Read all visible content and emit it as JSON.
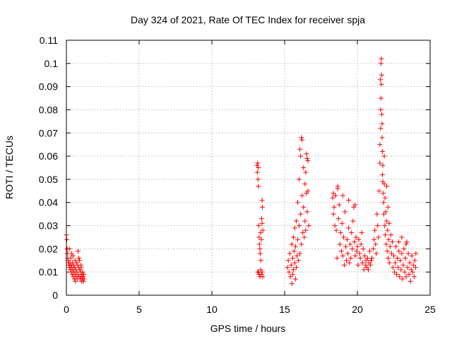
{
  "chart_data": {
    "type": "scatter",
    "title": "Day 324 of 2021, Rate Of TEC Index for receiver spja",
    "xlabel": "GPS time / hours",
    "ylabel": "ROTI / TECUs",
    "xlim": [
      0,
      25
    ],
    "ylim": [
      0,
      0.11
    ],
    "grid": true,
    "marker": "plus",
    "color": "#ff0000",
    "x_ticks": [
      "0",
      "5",
      "10",
      "15",
      "20",
      "25"
    ],
    "y_ticks": [
      "0",
      "0.01",
      "0.02",
      "0.03",
      "0.04",
      "0.05",
      "0.06",
      "0.07",
      "0.08",
      "0.09",
      "0.1",
      "0.11"
    ],
    "series": [
      {
        "points": [
          [
            0.0,
            0.026
          ],
          [
            0.03,
            0.024
          ],
          [
            0.05,
            0.02
          ],
          [
            0.08,
            0.018
          ],
          [
            0.1,
            0.016
          ],
          [
            0.12,
            0.015
          ],
          [
            0.15,
            0.014
          ],
          [
            0.17,
            0.013
          ],
          [
            0.2,
            0.02
          ],
          [
            0.22,
            0.012
          ],
          [
            0.25,
            0.014
          ],
          [
            0.27,
            0.011
          ],
          [
            0.3,
            0.016
          ],
          [
            0.32,
            0.013
          ],
          [
            0.35,
            0.01
          ],
          [
            0.37,
            0.012
          ],
          [
            0.4,
            0.009
          ],
          [
            0.42,
            0.014
          ],
          [
            0.45,
            0.011
          ],
          [
            0.47,
            0.008
          ],
          [
            0.5,
            0.013
          ],
          [
            0.52,
            0.01
          ],
          [
            0.55,
            0.007
          ],
          [
            0.57,
            0.012
          ],
          [
            0.6,
            0.009
          ],
          [
            0.62,
            0.006
          ],
          [
            0.65,
            0.011
          ],
          [
            0.67,
            0.008
          ],
          [
            0.7,
            0.014
          ],
          [
            0.72,
            0.01
          ],
          [
            0.75,
            0.007
          ],
          [
            0.77,
            0.013
          ],
          [
            0.8,
            0.019
          ],
          [
            0.82,
            0.009
          ],
          [
            0.85,
            0.012
          ],
          [
            0.87,
            0.008
          ],
          [
            0.9,
            0.015
          ],
          [
            0.92,
            0.011
          ],
          [
            0.95,
            0.007
          ],
          [
            0.97,
            0.01
          ],
          [
            1.0,
            0.008
          ],
          [
            1.02,
            0.012
          ],
          [
            1.05,
            0.006
          ],
          [
            1.07,
            0.009
          ],
          [
            1.1,
            0.007
          ],
          [
            1.12,
            0.01
          ],
          [
            1.15,
            0.008
          ],
          [
            1.17,
            0.006
          ],
          [
            1.2,
            0.009
          ],
          [
            1.22,
            0.007
          ],
          [
            0.45,
            0.017
          ],
          [
            0.6,
            0.015
          ],
          [
            0.85,
            0.016
          ],
          [
            1.0,
            0.013
          ],
          [
            0.35,
            0.018
          ],
          [
            13.1,
            0.056
          ],
          [
            13.12,
            0.053
          ],
          [
            13.15,
            0.057
          ],
          [
            13.17,
            0.05
          ],
          [
            13.2,
            0.047
          ],
          [
            13.2,
            0.055
          ],
          [
            13.22,
            0.03
          ],
          [
            13.25,
            0.025
          ],
          [
            13.27,
            0.022
          ],
          [
            13.3,
            0.02
          ],
          [
            13.32,
            0.018
          ],
          [
            13.35,
            0.027
          ],
          [
            13.37,
            0.015
          ],
          [
            13.4,
            0.024
          ],
          [
            13.42,
            0.033
          ],
          [
            13.45,
            0.041
          ],
          [
            13.47,
            0.038
          ],
          [
            13.5,
            0.028
          ],
          [
            13.2,
            0.01
          ],
          [
            13.25,
            0.009
          ],
          [
            13.3,
            0.008
          ],
          [
            13.35,
            0.011
          ],
          [
            13.4,
            0.009
          ],
          [
            13.45,
            0.01
          ],
          [
            13.5,
            0.008
          ],
          [
            13.15,
            0.01
          ],
          [
            13.45,
            0.031
          ],
          [
            15.2,
            0.012
          ],
          [
            15.25,
            0.015
          ],
          [
            15.3,
            0.01
          ],
          [
            15.35,
            0.018
          ],
          [
            15.4,
            0.008
          ],
          [
            15.45,
            0.013
          ],
          [
            15.5,
            0.022
          ],
          [
            15.5,
            0.005
          ],
          [
            15.55,
            0.016
          ],
          [
            15.6,
            0.011
          ],
          [
            15.6,
            0.025
          ],
          [
            15.65,
            0.019
          ],
          [
            15.7,
            0.014
          ],
          [
            15.7,
            0.029
          ],
          [
            15.75,
            0.021
          ],
          [
            15.8,
            0.012
          ],
          [
            15.8,
            0.032
          ],
          [
            15.85,
            0.017
          ],
          [
            15.9,
            0.024
          ],
          [
            15.9,
            0.04
          ],
          [
            15.95,
            0.015
          ],
          [
            16.0,
            0.03
          ],
          [
            16.0,
            0.05
          ],
          [
            16.05,
            0.018
          ],
          [
            16.1,
            0.035
          ],
          [
            16.1,
            0.06
          ],
          [
            16.15,
            0.022
          ],
          [
            16.2,
            0.043
          ],
          [
            16.2,
            0.067
          ],
          [
            16.25,
            0.027
          ],
          [
            16.3,
            0.038
          ],
          [
            16.3,
            0.055
          ],
          [
            16.35,
            0.025
          ],
          [
            16.4,
            0.032
          ],
          [
            16.4,
            0.048
          ],
          [
            16.45,
            0.028
          ],
          [
            16.5,
            0.044
          ],
          [
            16.5,
            0.061
          ],
          [
            16.55,
            0.036
          ],
          [
            16.6,
            0.045
          ],
          [
            16.6,
            0.058
          ],
          [
            16.65,
            0.03
          ],
          [
            15.55,
            0.009
          ],
          [
            15.75,
            0.007
          ],
          [
            16.05,
            0.063
          ],
          [
            16.15,
            0.068
          ],
          [
            16.45,
            0.053
          ],
          [
            16.55,
            0.059
          ],
          [
            18.3,
            0.042
          ],
          [
            18.35,
            0.035
          ],
          [
            18.4,
            0.038
          ],
          [
            18.45,
            0.03
          ],
          [
            18.5,
            0.043
          ],
          [
            18.55,
            0.028
          ],
          [
            18.6,
            0.016
          ],
          [
            18.65,
            0.046
          ],
          [
            18.7,
            0.033
          ],
          [
            18.75,
            0.039
          ],
          [
            18.8,
            0.022
          ],
          [
            18.85,
            0.027
          ],
          [
            18.9,
            0.019
          ],
          [
            18.95,
            0.031
          ],
          [
            19.0,
            0.017
          ],
          [
            19.05,
            0.025
          ],
          [
            19.1,
            0.013
          ],
          [
            19.15,
            0.036
          ],
          [
            19.2,
            0.021
          ],
          [
            19.25,
            0.015
          ],
          [
            19.3,
            0.024
          ],
          [
            19.35,
            0.018
          ],
          [
            19.4,
            0.029
          ],
          [
            19.45,
            0.014
          ],
          [
            19.5,
            0.022
          ],
          [
            19.55,
            0.016
          ],
          [
            19.6,
            0.027
          ],
          [
            19.65,
            0.02
          ],
          [
            19.7,
            0.032
          ],
          [
            19.75,
            0.038
          ],
          [
            19.8,
            0.023
          ],
          [
            19.85,
            0.017
          ],
          [
            19.9,
            0.025
          ],
          [
            19.95,
            0.019
          ],
          [
            20.0,
            0.021
          ],
          [
            20.05,
            0.013
          ],
          [
            20.1,
            0.024
          ],
          [
            20.15,
            0.018
          ],
          [
            20.2,
            0.016
          ],
          [
            20.25,
            0.022
          ],
          [
            20.3,
            0.027
          ],
          [
            20.35,
            0.014
          ],
          [
            20.4,
            0.02
          ],
          [
            20.45,
            0.011
          ],
          [
            20.5,
            0.017
          ],
          [
            20.55,
            0.013
          ],
          [
            20.6,
            0.015
          ],
          [
            20.65,
            0.012
          ],
          [
            20.7,
            0.016
          ],
          [
            20.75,
            0.011
          ],
          [
            20.8,
            0.014
          ],
          [
            20.85,
            0.019
          ],
          [
            20.9,
            0.013
          ],
          [
            20.95,
            0.015
          ],
          [
            21.0,
            0.016
          ],
          [
            19.0,
            0.043
          ],
          [
            18.35,
            0.044
          ],
          [
            18.65,
            0.047
          ],
          [
            19.4,
            0.041
          ],
          [
            19.85,
            0.039
          ],
          [
            21.1,
            0.02
          ],
          [
            21.15,
            0.024
          ],
          [
            21.2,
            0.028
          ],
          [
            21.25,
            0.022
          ],
          [
            21.3,
            0.018
          ],
          [
            21.35,
            0.035
          ],
          [
            21.4,
            0.03
          ],
          [
            21.45,
            0.025
          ],
          [
            21.5,
            0.045
          ],
          [
            21.55,
            0.057
          ],
          [
            21.55,
            0.065
          ],
          [
            21.6,
            0.072
          ],
          [
            21.6,
            0.08
          ],
          [
            21.62,
            0.085
          ],
          [
            21.58,
            0.093
          ],
          [
            21.62,
            0.1
          ],
          [
            21.65,
            0.102
          ],
          [
            21.65,
            0.091
          ],
          [
            21.68,
            0.078
          ],
          [
            21.7,
            0.074
          ],
          [
            21.7,
            0.068
          ],
          [
            21.72,
            0.062
          ],
          [
            21.75,
            0.056
          ],
          [
            21.75,
            0.049
          ],
          [
            21.78,
            0.044
          ],
          [
            21.8,
            0.04
          ],
          [
            21.82,
            0.035
          ],
          [
            21.85,
            0.048
          ],
          [
            21.88,
            0.03
          ],
          [
            21.9,
            0.042
          ],
          [
            21.92,
            0.026
          ],
          [
            21.95,
            0.036
          ],
          [
            21.98,
            0.022
          ],
          [
            22.0,
            0.032
          ],
          [
            22.02,
            0.047
          ],
          [
            22.05,
            0.019
          ],
          [
            22.08,
            0.028
          ],
          [
            22.1,
            0.038
          ],
          [
            22.12,
            0.016
          ],
          [
            22.15,
            0.024
          ],
          [
            22.18,
            0.031
          ],
          [
            22.2,
            0.014
          ],
          [
            22.25,
            0.021
          ],
          [
            22.3,
            0.026
          ],
          [
            22.35,
            0.018
          ],
          [
            22.4,
            0.023
          ],
          [
            22.45,
            0.012
          ],
          [
            21.68,
            0.095
          ],
          [
            21.72,
            0.052
          ],
          [
            21.85,
            0.06
          ],
          [
            22.5,
            0.017
          ],
          [
            22.55,
            0.01
          ],
          [
            22.6,
            0.014
          ],
          [
            22.65,
            0.021
          ],
          [
            22.7,
            0.009
          ],
          [
            22.75,
            0.016
          ],
          [
            22.8,
            0.012
          ],
          [
            22.85,
            0.019
          ],
          [
            22.9,
            0.008
          ],
          [
            22.95,
            0.015
          ],
          [
            23.0,
            0.011
          ],
          [
            23.05,
            0.018
          ],
          [
            23.1,
            0.007
          ],
          [
            23.15,
            0.013
          ],
          [
            23.2,
            0.02
          ],
          [
            23.25,
            0.01
          ],
          [
            23.3,
            0.016
          ],
          [
            23.35,
            0.008
          ],
          [
            23.4,
            0.023
          ],
          [
            23.45,
            0.012
          ],
          [
            23.5,
            0.018
          ],
          [
            23.55,
            0.009
          ],
          [
            23.6,
            0.014
          ],
          [
            23.65,
            0.006
          ],
          [
            23.7,
            0.011
          ],
          [
            23.75,
            0.017
          ],
          [
            23.8,
            0.01
          ],
          [
            23.85,
            0.013
          ],
          [
            23.9,
            0.008
          ],
          [
            23.95,
            0.015
          ],
          [
            24.0,
            0.012
          ],
          [
            24.02,
            0.018
          ],
          [
            23.05,
            0.025
          ],
          [
            23.35,
            0.022
          ],
          [
            22.85,
            0.023
          ]
        ]
      }
    ]
  }
}
